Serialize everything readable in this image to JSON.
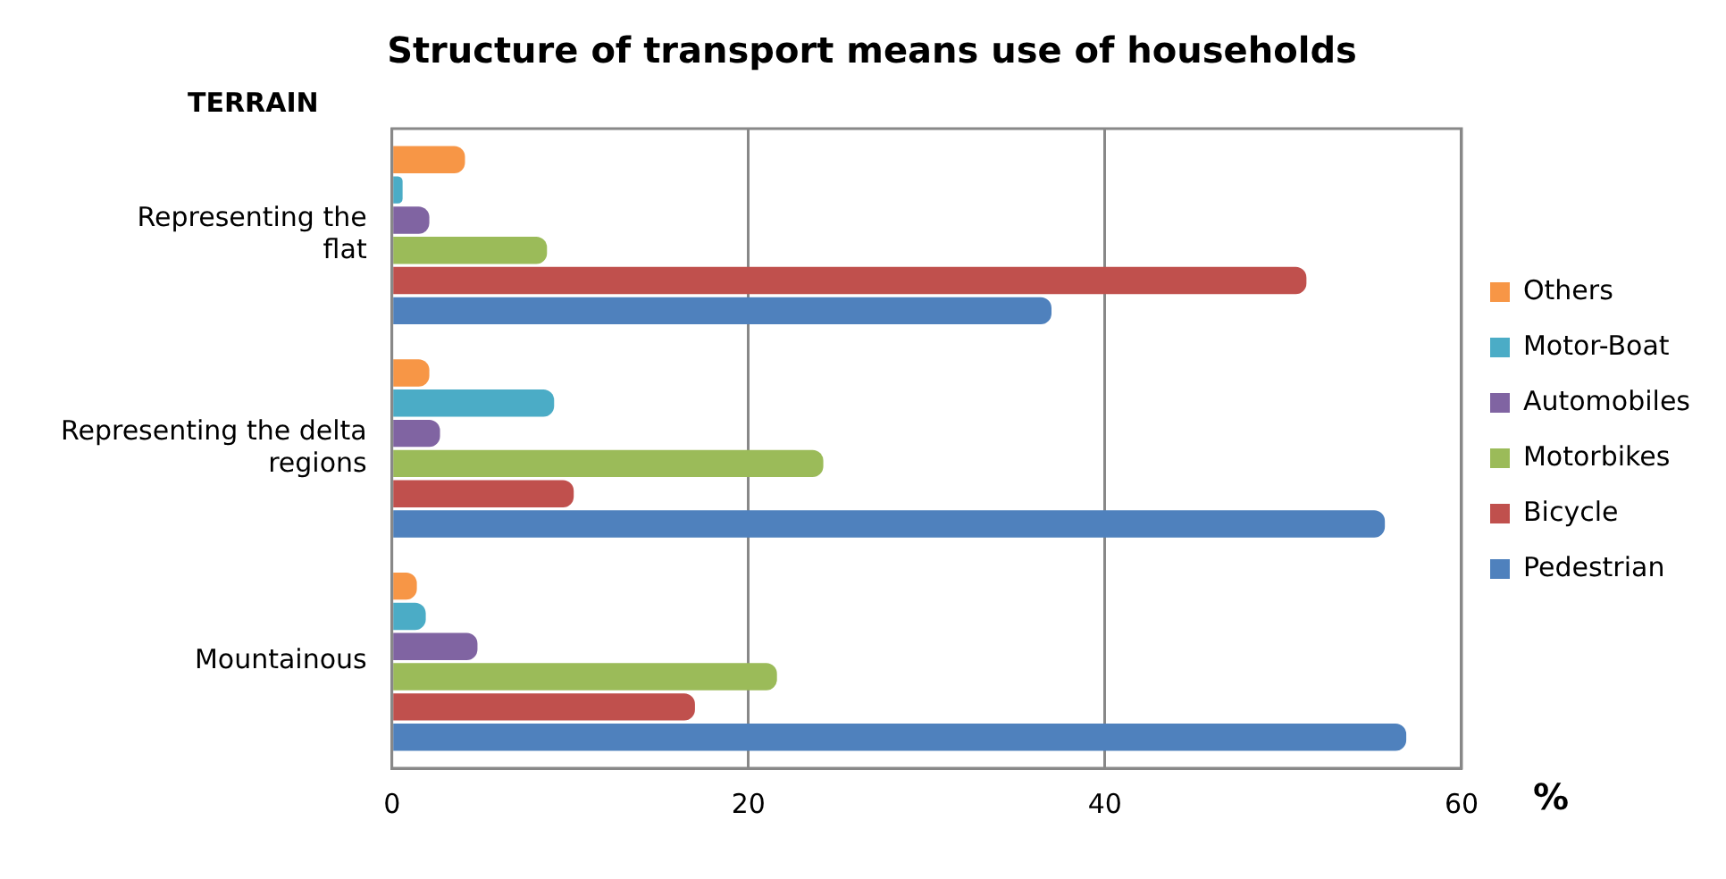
{
  "chart_data": {
    "type": "bar",
    "orientation": "horizontal",
    "title": "Structure of transport means use of households",
    "ylabel": "TERRAIN",
    "xlabel": "%",
    "categories": [
      "Representing the flat",
      "Representing the delta regions",
      "Mountainous"
    ],
    "series": [
      {
        "name": "Pedestrian",
        "color": "#4f81bd",
        "values": [
          37.0,
          55.7,
          56.9
        ]
      },
      {
        "name": "Bicycle",
        "color": "#c0504d",
        "values": [
          51.3,
          10.2,
          17.0
        ]
      },
      {
        "name": "Motorbikes",
        "color": "#9bbb59",
        "values": [
          8.7,
          24.2,
          21.6
        ]
      },
      {
        "name": "Automobiles",
        "color": "#8064a2",
        "values": [
          2.1,
          2.7,
          4.8
        ]
      },
      {
        "name": "Motor-Boat",
        "color": "#4bacc6",
        "values": [
          0.6,
          9.1,
          1.9
        ]
      },
      {
        "name": "Others",
        "color": "#f79646",
        "values": [
          4.1,
          2.1,
          1.4
        ]
      }
    ],
    "xlim": [
      0,
      60
    ],
    "xticks": [
      0,
      20,
      40,
      60
    ],
    "grid": "x",
    "legend": "right"
  }
}
